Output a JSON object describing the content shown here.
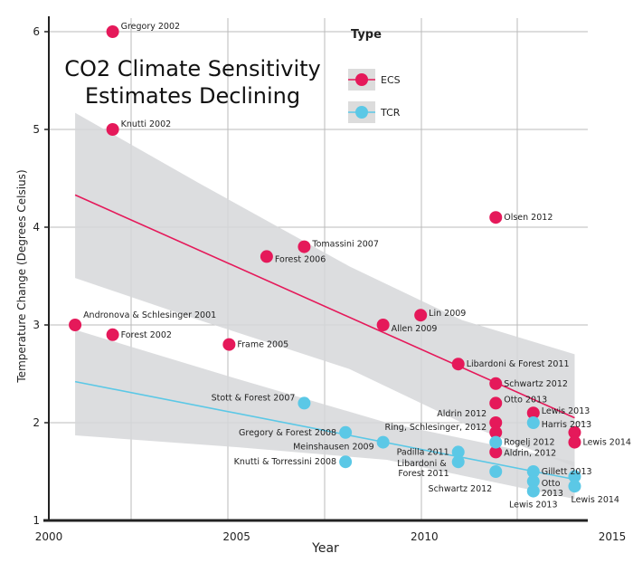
{
  "chart_data": {
    "type": "scatter",
    "title": "CO2 Climate Sensitivity\nEstimates Declining",
    "title_lines": [
      "CO2 Climate Sensitivity",
      "Estimates Declining"
    ],
    "xlabel": "Year",
    "ylabel": "Temperature Change (Degrees Celsius)",
    "xlim": [
      2000,
      2015
    ],
    "ylim": [
      1,
      6.2
    ],
    "xticks": [
      2000,
      2005,
      2010,
      2015
    ],
    "yticks": [
      1,
      2,
      3,
      4,
      5,
      6
    ],
    "grid": true,
    "legend": {
      "title": "Type",
      "placement": "top-right"
    },
    "series": [
      {
        "name": "ECS",
        "color": "#e5195a",
        "points": [
          {
            "x": 2001.7,
            "y": 6.0,
            "label": "Gregory 2002"
          },
          {
            "x": 2001.7,
            "y": 5.0,
            "label": "Knutti 2002"
          },
          {
            "x": 2000.7,
            "y": 3.0,
            "label": "Andronova & Schlesinger 2001"
          },
          {
            "x": 2001.7,
            "y": 2.9,
            "label": "Forest 2002"
          },
          {
            "x": 2004.8,
            "y": 2.8,
            "label": "Frame 2005"
          },
          {
            "x": 2005.8,
            "y": 3.7,
            "label": "Forest 2006"
          },
          {
            "x": 2006.8,
            "y": 3.8,
            "label": "Tomassini 2007"
          },
          {
            "x": 2008.9,
            "y": 3.0,
            "label": "Allen 2009"
          },
          {
            "x": 2009.9,
            "y": 3.1,
            "label": "Lin 2009"
          },
          {
            "x": 2010.9,
            "y": 2.6,
            "label": "Libardoni & Forest 2011"
          },
          {
            "x": 2011.9,
            "y": 4.1,
            "label": "Olsen 2012"
          },
          {
            "x": 2011.9,
            "y": 2.4,
            "label": "Schwartz 2012"
          },
          {
            "x": 2011.9,
            "y": 2.2,
            "label": "Otto 2013"
          },
          {
            "x": 2011.9,
            "y": 2.0,
            "label": "Aldrin 2012"
          },
          {
            "x": 2011.9,
            "y": 1.9,
            "label": "Ring, Schlesinger, 2012"
          },
          {
            "x": 2011.9,
            "y": 1.7,
            "label": "Aldrin, 2012"
          },
          {
            "x": 2012.9,
            "y": 2.1,
            "label": "Lewis 2013"
          },
          {
            "x": 2014.0,
            "y": 1.9,
            "label": ""
          },
          {
            "x": 2014.0,
            "y": 1.8,
            "label": "Lewis 2014"
          }
        ],
        "trend": [
          [
            2000.7,
            4.33
          ],
          [
            2014.0,
            2.05
          ]
        ],
        "band_upper": [
          [
            2000.7,
            5.17
          ],
          [
            2004,
            4.45
          ],
          [
            2008,
            3.6
          ],
          [
            2011,
            3.05
          ],
          [
            2014.0,
            2.7
          ]
        ],
        "band_lower": [
          [
            2000.7,
            3.48
          ],
          [
            2004,
            3.05
          ],
          [
            2008,
            2.55
          ],
          [
            2011,
            2.0
          ],
          [
            2014.0,
            1.55
          ]
        ]
      },
      {
        "name": "TCR",
        "color": "#5bc8e6",
        "points": [
          {
            "x": 2006.8,
            "y": 2.2,
            "label": "Stott & Forest 2007"
          },
          {
            "x": 2007.9,
            "y": 1.9,
            "label": "Gregory & Forest 2008"
          },
          {
            "x": 2008.9,
            "y": 1.8,
            "label": "Meinshausen 2009"
          },
          {
            "x": 2007.9,
            "y": 1.6,
            "label": "Knutti & Torressini 2008"
          },
          {
            "x": 2010.9,
            "y": 1.7,
            "label": "Padilla 2011"
          },
          {
            "x": 2010.9,
            "y": 1.6,
            "label": "Libardoni & Forest 2011"
          },
          {
            "x": 2011.9,
            "y": 1.8,
            "label": "Rogelj 2012"
          },
          {
            "x": 2011.9,
            "y": 1.5,
            "label": "Schwartz 2012"
          },
          {
            "x": 2012.9,
            "y": 2.0,
            "label": "Harris 2013"
          },
          {
            "x": 2012.9,
            "y": 1.5,
            "label": "Gillett 2013"
          },
          {
            "x": 2012.9,
            "y": 1.4,
            "label": "Otto 2013"
          },
          {
            "x": 2012.9,
            "y": 1.3,
            "label": "Lewis 2013"
          },
          {
            "x": 2014.0,
            "y": 1.45,
            "label": ""
          },
          {
            "x": 2014.0,
            "y": 1.35,
            "label": "Lewis 2014"
          }
        ],
        "trend": [
          [
            2000.7,
            2.42
          ],
          [
            2014.0,
            1.42
          ]
        ],
        "band_upper": [
          [
            2000.7,
            2.95
          ],
          [
            2005,
            2.45
          ],
          [
            2009,
            2.0
          ],
          [
            2014.0,
            1.6
          ]
        ],
        "band_lower": [
          [
            2000.7,
            1.87
          ],
          [
            2005,
            1.75
          ],
          [
            2009,
            1.62
          ],
          [
            2014.0,
            1.22
          ]
        ]
      }
    ]
  }
}
